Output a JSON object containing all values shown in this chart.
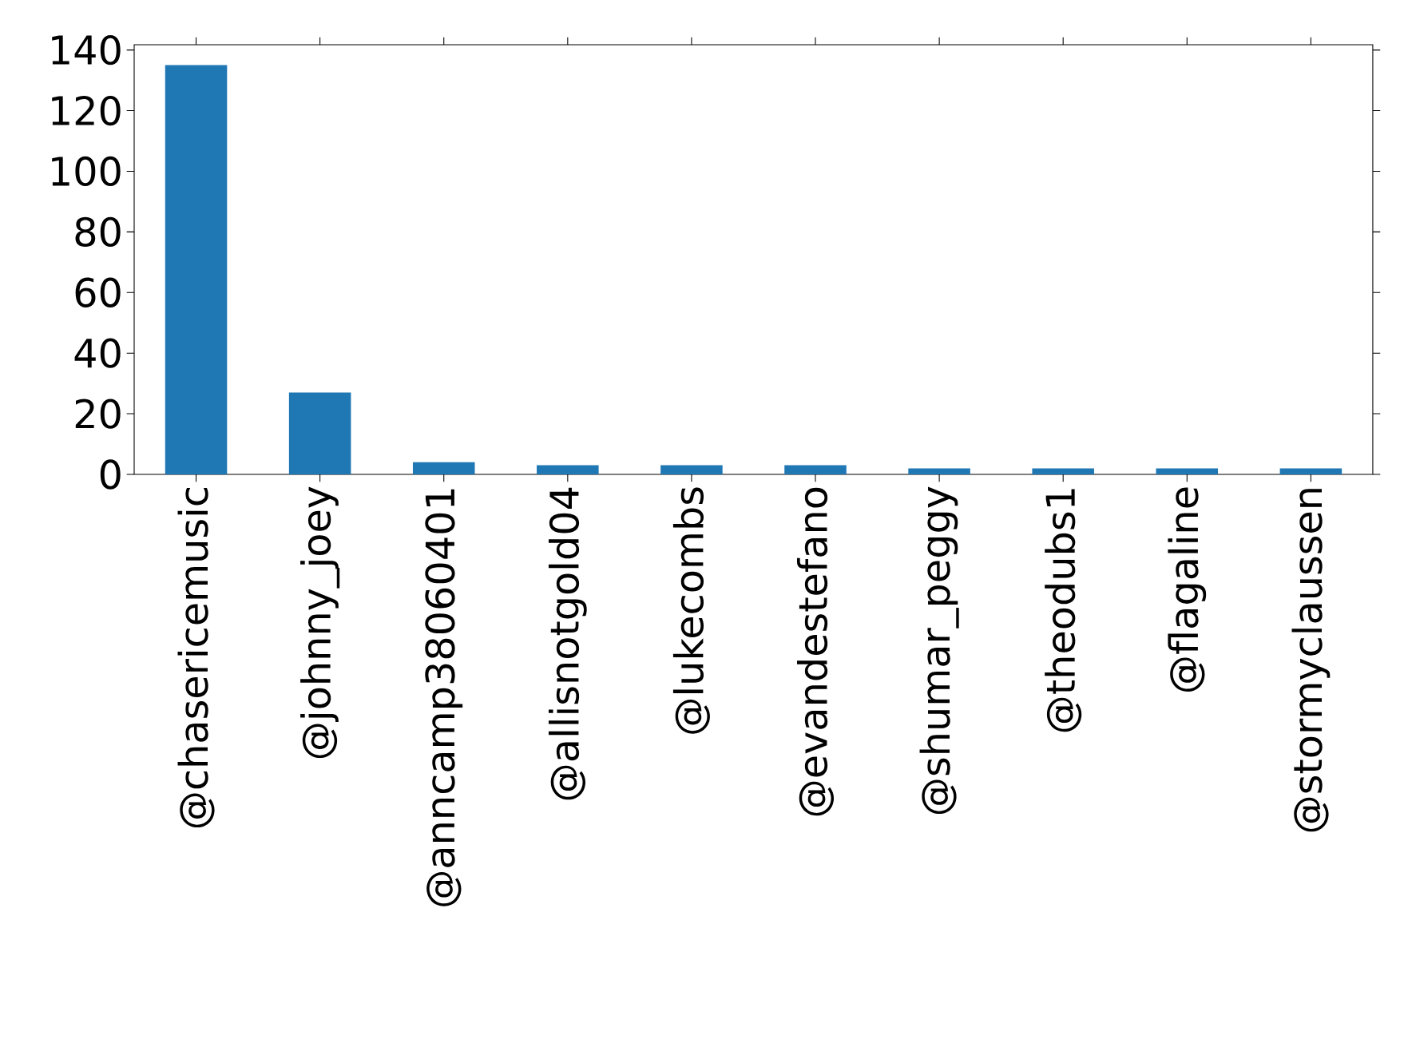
{
  "chart_data": {
    "type": "bar",
    "categories": [
      "@chasericemusic",
      "@johnny_joey",
      "@anncamp38060401",
      "@allisnotgold04",
      "@lukecombs",
      "@evandestefano",
      "@shumar_peggy",
      "@theodubs1",
      "@flagaline",
      "@stormyclaussen"
    ],
    "values": [
      135,
      27,
      4,
      3,
      3,
      3,
      2,
      2,
      2,
      2
    ],
    "color": "#1f77b4",
    "ylim": [
      0,
      141.75
    ],
    "yticks": [
      0,
      20,
      40,
      60,
      80,
      100,
      120,
      140
    ]
  }
}
